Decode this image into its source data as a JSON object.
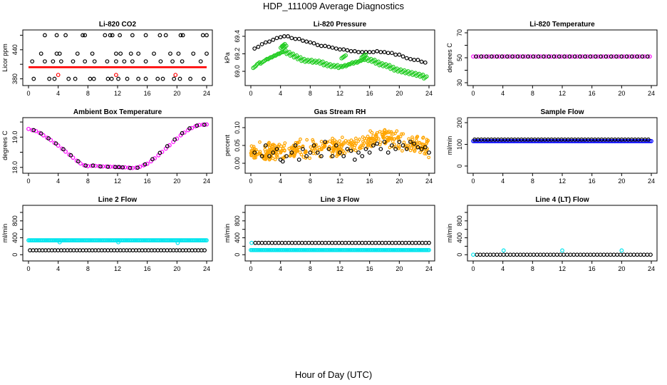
{
  "title": "HDP_111009  Average Diagnostics",
  "x_caption": "Hour of Day (UTC)",
  "colors": {
    "black": "#000000",
    "red": "#ff0000",
    "green": "#22cc22",
    "magenta": "#ff00ff",
    "orange": "#ffa500",
    "blue": "#0000ff",
    "cyan": "#00e5ee"
  },
  "chart_data": [
    {
      "type": "scatter",
      "title": "Li-820 CO2",
      "ylabel": "Licor ppm",
      "xlim": [
        0,
        24
      ],
      "ylim": [
        372,
        475
      ],
      "xticks": [
        0,
        4,
        8,
        12,
        16,
        20,
        24
      ],
      "yticks": [
        380,
        410,
        440,
        470
      ],
      "ytick_labels": [
        "380",
        "",
        "440",
        ""
      ],
      "series": [
        {
          "color": "black",
          "x": [
            2.2,
            3.8,
            5.0,
            7.3,
            7.6,
            10.3,
            11.0,
            11.3,
            12.3,
            14.0,
            15.8,
            17.7,
            18.5,
            20.5,
            20.8,
            23.5,
            24.0
          ],
          "y": [
            470,
            470,
            470,
            470,
            470,
            470,
            470,
            470,
            470,
            470,
            470,
            470,
            470,
            470,
            470,
            470,
            470
          ]
        },
        {
          "color": "black",
          "x": [
            1.7,
            3.8,
            4.2,
            6.6,
            8.6,
            11.8,
            12.4,
            13.8,
            14.8,
            16.9,
            19.1,
            20.2,
            22.2,
            24.0
          ],
          "y": [
            432,
            432,
            432,
            432,
            432,
            432,
            432,
            432,
            432,
            432,
            432,
            432,
            432,
            432
          ]
        },
        {
          "color": "black",
          "x": [
            0.5,
            2.2,
            3.3,
            4.4,
            6.0,
            7.6,
            8.9,
            10.6,
            11.8,
            12.9,
            14.0,
            15.8,
            17.8,
            19.4,
            20.7,
            23.2
          ],
          "y": [
            416,
            416,
            416,
            416,
            416,
            416,
            416,
            416,
            416,
            416,
            416,
            416,
            416,
            416,
            416,
            416
          ]
        },
        {
          "color": "black",
          "x": [
            0.7,
            2.8,
            3.5,
            5.4,
            6.3,
            8.3,
            8.8,
            10.7,
            11.2,
            12.1,
            13.3,
            14.8,
            15.8,
            17.4,
            18.1,
            19.6,
            20.4,
            21.8,
            23.6
          ],
          "y": [
            380,
            380,
            380,
            380,
            380,
            380,
            380,
            380,
            380,
            380,
            380,
            380,
            380,
            380,
            380,
            380,
            380,
            380,
            380
          ]
        },
        {
          "color": "red",
          "x": [
            4.0,
            11.8,
            19.8
          ],
          "y": [
            388,
            388,
            388
          ]
        },
        {
          "color": "red",
          "kind": "band",
          "x_from": 0,
          "x_to": 24,
          "y_from": 402,
          "y_to": 406
        }
      ]
    },
    {
      "type": "scatter",
      "title": "Li-820 Pressure",
      "ylabel": "kPa",
      "xlim": [
        0,
        24
      ],
      "ylim": [
        68.87,
        69.44
      ],
      "xticks": [
        0,
        4,
        8,
        12,
        16,
        20,
        24
      ],
      "yticks": [
        69.0,
        69.2,
        69.4
      ],
      "ytick_labels": [
        "69.0",
        "69.2",
        "69.4"
      ],
      "series": [
        {
          "color": "black",
          "x": [
            0.5,
            1.0,
            1.5,
            2.0,
            2.5,
            3.0,
            3.5,
            4.0,
            4.5,
            5.0,
            5.5,
            6.0,
            6.5,
            7.0,
            7.5,
            8.0,
            8.5,
            9.0,
            9.5,
            10.0,
            10.5,
            11.0,
            11.5,
            12.0,
            12.5,
            13.0,
            13.5,
            14.0,
            14.5,
            15.0,
            15.5,
            16.0,
            16.5,
            17.0,
            17.5,
            18.0,
            18.5,
            19.0,
            19.5,
            20.0,
            20.5,
            21.0,
            21.5,
            22.0,
            22.5,
            23.0,
            23.5
          ],
          "y": [
            69.26,
            69.28,
            69.31,
            69.33,
            69.34,
            69.36,
            69.38,
            69.39,
            69.4,
            69.4,
            69.38,
            69.37,
            69.37,
            69.35,
            69.34,
            69.33,
            69.32,
            69.3,
            69.29,
            69.29,
            69.28,
            69.27,
            69.26,
            69.25,
            69.25,
            69.24,
            69.23,
            69.23,
            69.22,
            69.22,
            69.22,
            69.22,
            69.22,
            69.23,
            69.22,
            69.22,
            69.21,
            69.21,
            69.19,
            69.19,
            69.17,
            69.15,
            69.14,
            69.13,
            69.13,
            69.11,
            69.1
          ]
        },
        {
          "color": "green",
          "x": [
            0.5,
            1.0,
            1.5,
            2.0,
            2.5,
            3.0,
            3.5,
            4.0,
            4.5,
            5.0,
            5.5,
            6.0,
            6.5,
            7.0,
            7.5,
            8.0,
            8.5,
            9.0,
            9.5,
            10.0,
            10.5,
            11.0,
            11.5,
            12.0,
            12.5,
            13.0,
            13.5,
            14.0,
            14.5,
            15.0,
            15.5,
            16.0,
            16.5,
            17.0,
            17.5,
            18.0,
            18.5,
            19.0,
            19.5,
            20.0,
            20.5,
            21.0,
            21.5,
            22.0,
            22.5,
            23.0,
            23.5
          ],
          "y": [
            69.05,
            69.09,
            69.1,
            69.13,
            69.15,
            69.17,
            69.19,
            69.21,
            69.23,
            69.21,
            69.19,
            69.17,
            69.15,
            69.13,
            69.12,
            69.12,
            69.11,
            69.11,
            69.1,
            69.08,
            69.07,
            69.06,
            69.06,
            69.05,
            69.06,
            69.07,
            69.09,
            69.1,
            69.11,
            69.13,
            69.14,
            69.13,
            69.12,
            69.1,
            69.08,
            69.07,
            69.06,
            69.04,
            69.02,
            69.01,
            69.0,
            68.99,
            68.98,
            68.97,
            68.96,
            68.95,
            68.93
          ]
        },
        {
          "color": "green",
          "x": [
            4.2,
            4.4,
            4.6,
            12.4,
            12.6,
            15.1,
            15.3
          ],
          "y": [
            69.28,
            69.3,
            69.28,
            69.16,
            69.17,
            69.17,
            69.18
          ]
        }
      ]
    },
    {
      "type": "scatter",
      "title": "Li-820 Temperature",
      "ylabel": "degrees C",
      "xlim": [
        0,
        24
      ],
      "ylim": [
        30,
        70
      ],
      "xticks": [
        0,
        4,
        8,
        12,
        16,
        20,
        24
      ],
      "yticks": [
        30,
        40,
        50,
        60,
        70
      ],
      "ytick_labels": [
        "30",
        "",
        "50",
        "",
        "70"
      ],
      "series": [
        {
          "color": "magenta",
          "kind": "row",
          "x_from": 0,
          "x_to": 24,
          "step": 0.35,
          "y": 51
        },
        {
          "color": "black",
          "kind": "row",
          "x_from": 0.4,
          "x_to": 24,
          "step": 0.7,
          "y": 51
        }
      ]
    },
    {
      "type": "scatter",
      "title": "Ambient Box Temperature",
      "ylabel": "degrees C",
      "xlim": [
        0,
        24
      ],
      "ylim": [
        17.9,
        19.55
      ],
      "xticks": [
        0,
        4,
        8,
        12,
        16,
        20,
        24
      ],
      "yticks": [
        18.0,
        18.5,
        19.0,
        19.5
      ],
      "ytick_labels": [
        "18.0",
        "",
        "19.0",
        ""
      ],
      "series": [
        {
          "color": "magenta",
          "x": [
            0.0,
            0.5,
            1.0,
            1.5,
            2.0,
            2.5,
            3.0,
            3.5,
            4.0,
            4.5,
            5.0,
            5.5,
            6.0,
            6.5,
            7.0,
            7.5,
            8.0,
            8.5,
            9.0,
            9.5,
            10.0,
            10.5,
            11.0,
            11.5,
            12.0,
            12.5,
            13.0,
            13.5,
            14.0,
            14.5,
            15.0,
            15.5,
            16.0,
            16.5,
            17.0,
            17.5,
            18.0,
            18.5,
            19.0,
            19.5,
            20.0,
            20.5,
            21.0,
            21.5,
            22.0,
            22.5,
            23.0,
            23.5,
            24.0
          ],
          "y": [
            19.27,
            19.23,
            19.2,
            19.14,
            19.06,
            18.98,
            18.9,
            18.81,
            18.72,
            18.62,
            18.52,
            18.42,
            18.32,
            18.22,
            18.13,
            18.07,
            18.04,
            18.05,
            18.05,
            18.04,
            18.03,
            18.03,
            18.02,
            18.02,
            18.01,
            18.0,
            18.0,
            17.99,
            17.98,
            17.99,
            18.02,
            18.07,
            18.12,
            18.2,
            18.3,
            18.4,
            18.51,
            18.62,
            18.73,
            18.84,
            18.95,
            19.06,
            19.15,
            19.23,
            19.3,
            19.36,
            19.4,
            19.41,
            19.42
          ]
        },
        {
          "color": "black",
          "x": [
            0.7,
            1.7,
            2.7,
            3.7,
            4.7,
            5.7,
            6.7,
            7.7,
            8.7,
            9.7,
            10.7,
            11.7,
            12.2,
            12.7,
            13.7,
            14.7,
            15.7,
            16.7,
            17.7,
            18.7,
            19.7,
            20.7,
            21.7,
            22.7,
            23.7
          ],
          "y": [
            19.23,
            19.12,
            18.96,
            18.79,
            18.6,
            18.4,
            18.2,
            18.06,
            18.06,
            18.03,
            18.02,
            18.01,
            18.01,
            18.0,
            17.98,
            17.99,
            18.1,
            18.27,
            18.48,
            18.7,
            18.92,
            19.13,
            19.29,
            19.38,
            19.41
          ]
        }
      ]
    },
    {
      "type": "scatter",
      "title": "Gas Stream RH",
      "ylabel": "percent",
      "xlim": [
        0,
        24
      ],
      "ylim": [
        -0.02,
        0.12
      ],
      "xticks": [
        0,
        4,
        8,
        12,
        16,
        20,
        24
      ],
      "yticks": [
        0.0,
        0.05,
        0.1
      ],
      "ytick_labels": [
        "0.00",
        "0.05",
        "0.10"
      ],
      "series": [
        {
          "color": "orange",
          "kind": "cloud",
          "count": 420,
          "seed": 7,
          "x_from": 0,
          "x_to": 24,
          "y_base": [
            [
              0,
              0.03
            ],
            [
              6,
              0.04
            ],
            [
              12,
              0.045
            ],
            [
              18,
              0.075
            ],
            [
              24,
              0.045
            ]
          ],
          "y_spread": 0.03
        },
        {
          "color": "black",
          "x": [
            0.5,
            1.5,
            2.0,
            2.5,
            3.0,
            3.5,
            4.0,
            4.3,
            4.8,
            5.5,
            6.0,
            6.5,
            7.0,
            7.5,
            8.0,
            8.5,
            9.0,
            9.5,
            10.0,
            10.5,
            11.0,
            11.5,
            12.0,
            12.5,
            13.0,
            13.5,
            14.0,
            14.5,
            15.0,
            15.5,
            16.0,
            16.5,
            17.0,
            17.5,
            18.0,
            18.5,
            19.0,
            19.5,
            20.0,
            20.5,
            21.0,
            21.5,
            22.0,
            22.5,
            23.0,
            23.5,
            24.0
          ],
          "y": [
            0.03,
            0.02,
            0.05,
            0.02,
            0.03,
            0.04,
            0.01,
            0.005,
            0.02,
            0.03,
            0.05,
            0.01,
            0.04,
            0.02,
            0.03,
            0.05,
            0.03,
            0.02,
            0.06,
            0.04,
            0.02,
            0.05,
            0.03,
            0.02,
            0.04,
            0.035,
            0.01,
            0.03,
            0.02,
            0.04,
            0.03,
            0.05,
            0.055,
            0.04,
            0.06,
            0.03,
            0.05,
            0.04,
            0.06,
            0.05,
            0.04,
            0.06,
            0.055,
            0.045,
            0.04,
            0.045,
            0.03
          ]
        }
      ]
    },
    {
      "type": "scatter",
      "title": "Sample Flow",
      "ylabel": "ml/min",
      "xlim": [
        0,
        24
      ],
      "ylim": [
        -20,
        210
      ],
      "xticks": [
        0,
        4,
        8,
        12,
        16,
        20,
        24
      ],
      "yticks": [
        0,
        100,
        200
      ],
      "ytick_labels": [
        "0",
        "100",
        "200"
      ],
      "series": [
        {
          "color": "blue",
          "kind": "row",
          "x_from": 0,
          "x_to": 24,
          "step": 0.2,
          "y": 115
        },
        {
          "color": "black",
          "kind": "row",
          "x_from": 0.2,
          "x_to": 24,
          "step": 0.45,
          "y": 122
        }
      ]
    },
    {
      "type": "scatter",
      "title": "Line 2 Flow",
      "ylabel": "ml/min",
      "xlim": [
        0,
        24
      ],
      "ylim": [
        -80,
        1100
      ],
      "xticks": [
        0,
        4,
        8,
        12,
        16,
        20,
        24
      ],
      "yticks": [
        0,
        200,
        400,
        600,
        800,
        1000
      ],
      "ytick_labels": [
        "0",
        "",
        "400",
        "",
        "800",
        ""
      ],
      "series": [
        {
          "color": "cyan",
          "kind": "row",
          "x_from": 0,
          "x_to": 24,
          "step": 0.15,
          "y": 340
        },
        {
          "color": "cyan",
          "x": [
            4.2,
            12.1,
            20.1
          ],
          "y": [
            295,
            295,
            280
          ]
        },
        {
          "color": "black",
          "kind": "row",
          "x_from": 0.2,
          "x_to": 24,
          "step": 0.42,
          "y": 105
        }
      ]
    },
    {
      "type": "scatter",
      "title": "Line 3 Flow",
      "ylabel": "ml/min",
      "xlim": [
        0,
        24
      ],
      "ylim": [
        -80,
        1100
      ],
      "xticks": [
        0,
        4,
        8,
        12,
        16,
        20,
        24
      ],
      "yticks": [
        0,
        200,
        400,
        600,
        800,
        1000
      ],
      "ytick_labels": [
        "0",
        "",
        "400",
        "",
        "800",
        ""
      ],
      "series": [
        {
          "color": "cyan",
          "kind": "row",
          "x_from": 0,
          "x_to": 24,
          "step": 0.15,
          "y": 110
        },
        {
          "color": "cyan",
          "x": [
            0.1
          ],
          "y": [
            280
          ]
        },
        {
          "color": "black",
          "kind": "row",
          "x_from": 0.6,
          "x_to": 24,
          "step": 0.45,
          "y": 280
        }
      ]
    },
    {
      "type": "scatter",
      "title": "Line 4 (LT) Flow",
      "ylabel": "ml/min",
      "xlim": [
        0,
        24
      ],
      "ylim": [
        -80,
        1100
      ],
      "xticks": [
        0,
        4,
        8,
        12,
        16,
        20,
        24
      ],
      "yticks": [
        0,
        200,
        400,
        600,
        800,
        1000
      ],
      "ytick_labels": [
        "0",
        "",
        "400",
        "",
        "800",
        ""
      ],
      "series": [
        {
          "color": "black",
          "kind": "row",
          "x_from": 0.5,
          "x_to": 24,
          "step": 0.45,
          "y": 0
        },
        {
          "color": "cyan",
          "x": [
            0.0,
            4.1,
            12.0,
            20.0
          ],
          "y": [
            0,
            100,
            100,
            100
          ]
        }
      ]
    }
  ]
}
